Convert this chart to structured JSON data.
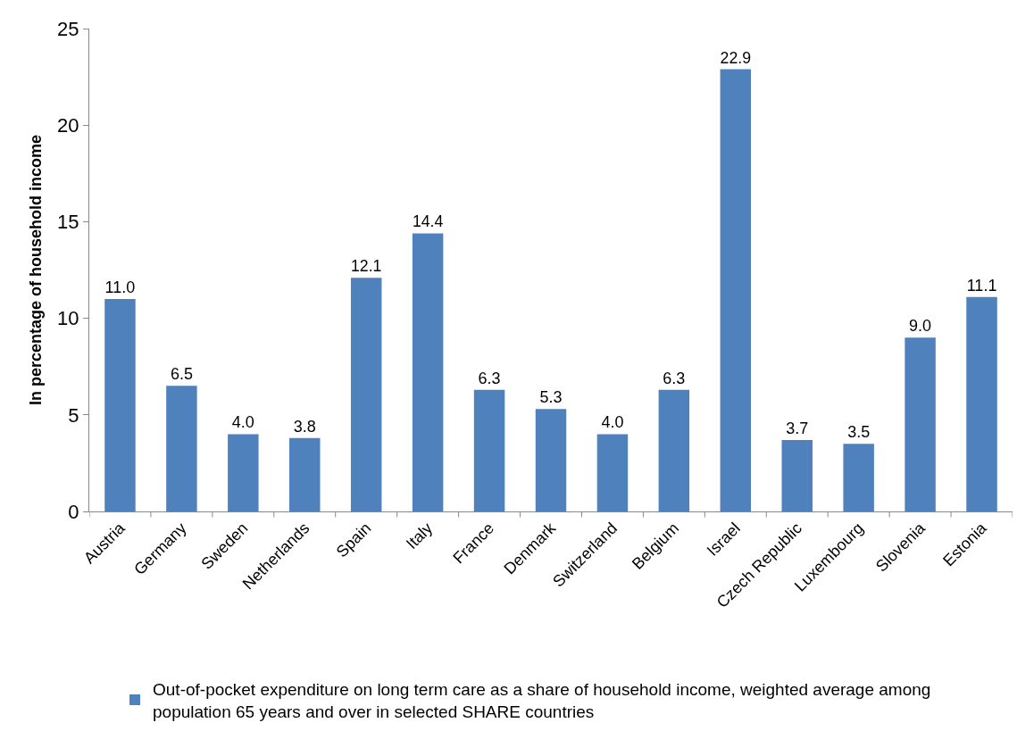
{
  "chart_data": {
    "type": "bar",
    "ylabel": "In percentage of household income",
    "categories": [
      "Austria",
      "Germany",
      "Sweden",
      "Netherlands",
      "Spain",
      "Italy",
      "France",
      "Denmark",
      "Switzerland",
      "Belgium",
      "Israel",
      "Czech Republic",
      "Luxembourg",
      "Slovenia",
      "Estonia"
    ],
    "series": [
      {
        "name": "Out-of-pocket expenditure on long term care as a share of household income, weighted average among population 65 years and over in selected SHARE countries",
        "color": "#4f81bd",
        "values": [
          11.0,
          6.5,
          4.0,
          3.8,
          12.1,
          14.4,
          6.3,
          5.3,
          4.0,
          6.3,
          22.9,
          3.7,
          3.5,
          9.0,
          11.1
        ],
        "value_labels": [
          "11.0",
          "6.5",
          "4.0",
          "3.8",
          "12.1",
          "14.4",
          "6.3",
          "5.3",
          "4.0",
          "6.3",
          "22.9",
          "3.7",
          "3.5",
          "9.0",
          "11.1"
        ]
      }
    ],
    "ylim": [
      0,
      25
    ],
    "yticks": [
      0,
      5,
      10,
      15,
      20,
      25
    ],
    "grid": false,
    "legend": "bottom"
  }
}
